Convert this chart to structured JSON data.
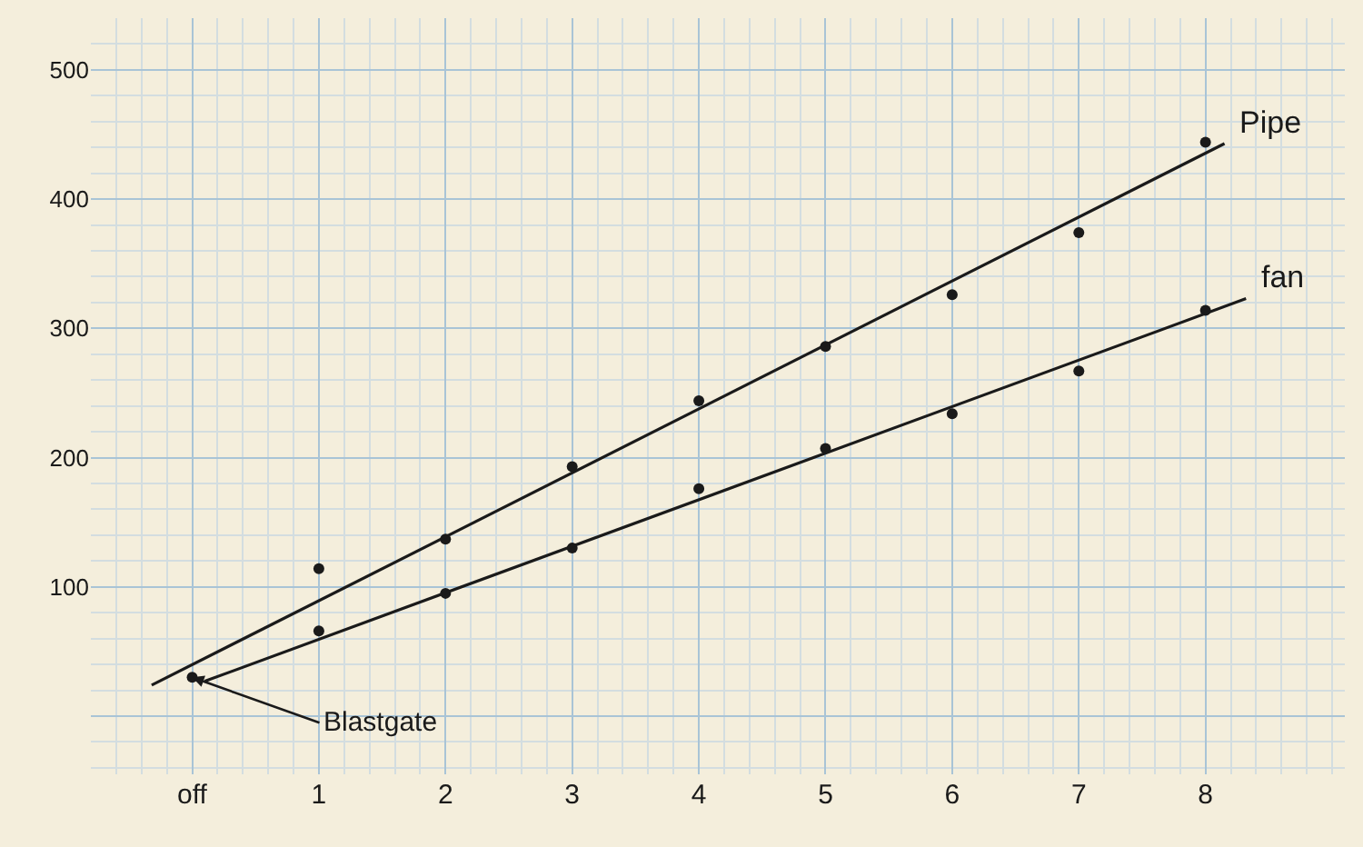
{
  "chart_data": {
    "type": "scatter",
    "x": [
      0,
      1,
      2,
      3,
      4,
      5,
      6,
      7,
      8
    ],
    "series": [
      {
        "color": "#1a1a1a",
        "marker": "circle",
        "values": [
          30,
          114,
          137,
          193,
          244,
          286,
          326,
          374,
          444
        ]
      },
      {
        "color": "#1a1a1a",
        "marker": "circle",
        "values": [
          null,
          66,
          95,
          130,
          176,
          207,
          234,
          267,
          314
        ]
      },
      {
        "type": "line",
        "name": "Pipe",
        "color": "#1a1a1a",
        "line_style": "solid",
        "x": [
          -0.32,
          8.15
        ],
        "values": [
          24,
          443
        ]
      },
      {
        "type": "line",
        "name": "fan",
        "color": "#1a1a1a",
        "line_style": "solid",
        "x": [
          0.1,
          8.32
        ],
        "values": [
          27,
          323
        ]
      }
    ],
    "xlim": [
      -0.8,
      9.1
    ],
    "ylim": [
      -45,
      540
    ],
    "xticks": [
      {
        "value": 0,
        "label": "off"
      },
      1,
      2,
      3,
      4,
      5,
      6,
      7,
      8
    ],
    "yticks": [
      {
        "value": 0,
        "label": null
      },
      100,
      200,
      300,
      400,
      500
    ],
    "grid": true,
    "legend": false,
    "annotations": [
      {
        "text": "Blastgate",
        "x": 0,
        "y": 30
      }
    ]
  }
}
